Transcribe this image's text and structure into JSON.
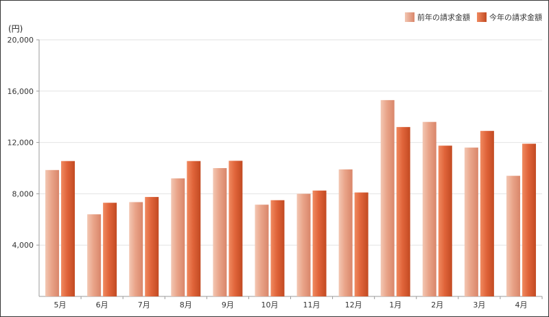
{
  "chart_data": {
    "type": "bar",
    "unit_label": "(円)",
    "categories": [
      "5月",
      "6月",
      "7月",
      "8月",
      "9月",
      "10月",
      "11月",
      "12月",
      "1月",
      "2月",
      "3月",
      "4月"
    ],
    "series": [
      {
        "name": "前年の請求金額",
        "color": "#e8a88f",
        "values": [
          9850,
          6400,
          7350,
          9200,
          10000,
          7150,
          8000,
          9900,
          15300,
          13600,
          11600,
          9400
        ]
      },
      {
        "name": "今年の請求金額",
        "color": "#e0643a",
        "values": [
          10550,
          7300,
          7750,
          10550,
          10570,
          7500,
          8250,
          8100,
          13200,
          11750,
          12900,
          11900
        ]
      }
    ],
    "ylim": [
      0,
      20000
    ],
    "yticks": [
      4000,
      8000,
      12000,
      16000,
      20000
    ],
    "ytick_labels": [
      "4,000",
      "8,000",
      "12,000",
      "16,000",
      "20,000"
    ],
    "grid": true,
    "legend_position": "top-right"
  }
}
